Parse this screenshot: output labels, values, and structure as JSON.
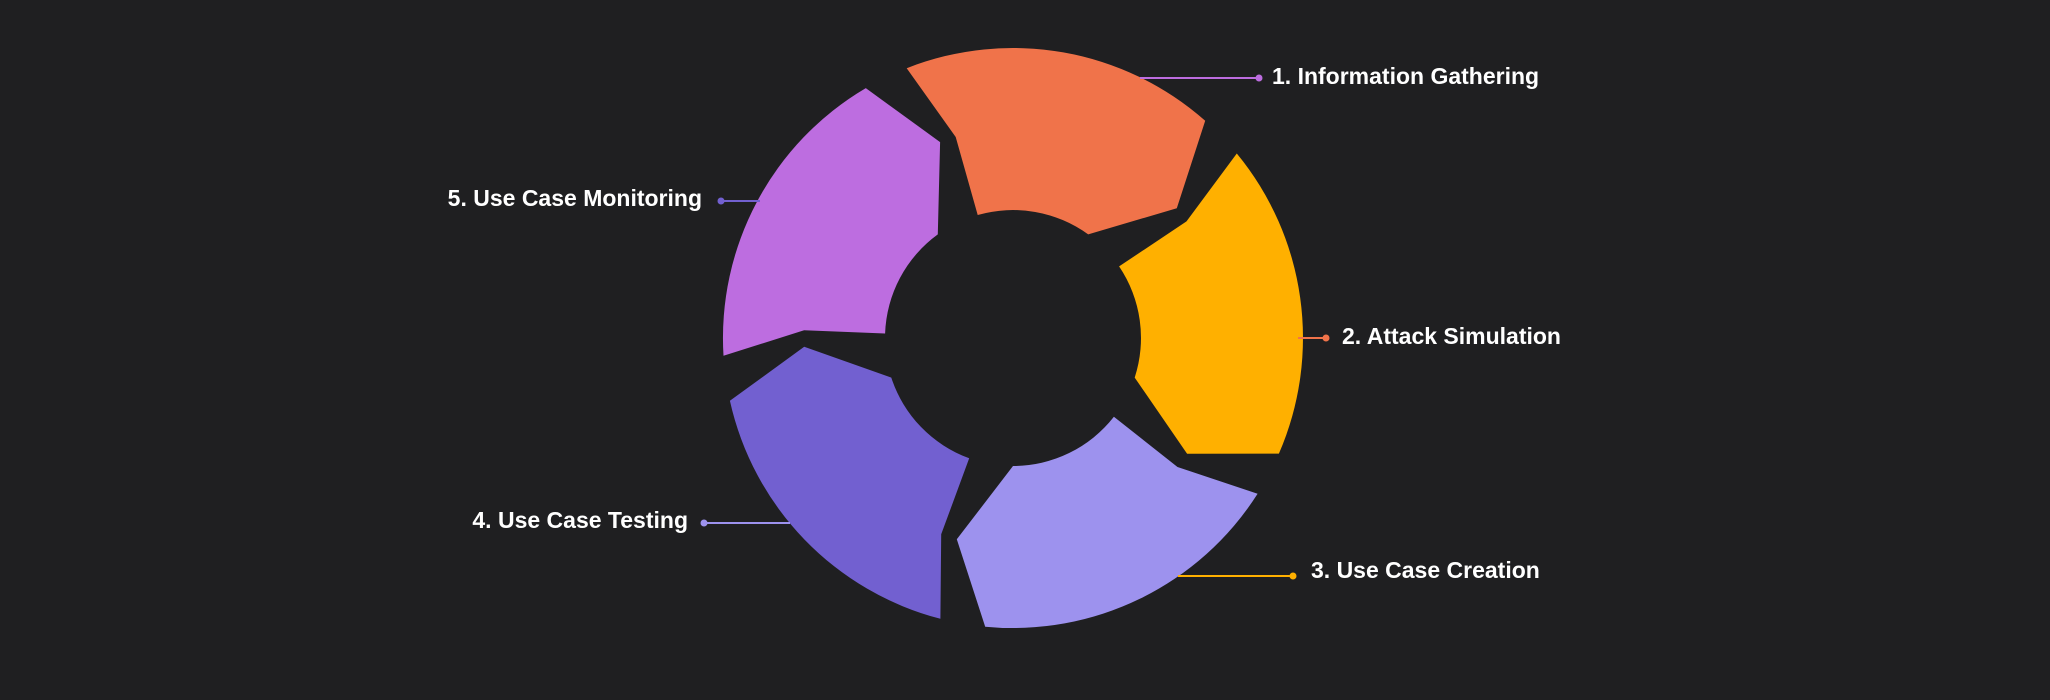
{
  "diagram": {
    "type": "cycle",
    "background": "#1f1f21",
    "steps": [
      {
        "label": "1. Information Gathering",
        "color": "#bd6de0"
      },
      {
        "label": "2. Attack Simulation",
        "color": "#f0734a"
      },
      {
        "label": "3. Use Case Creation",
        "color": "#ffb000"
      },
      {
        "label": "4. Use Case Testing",
        "color": "#9d92ee"
      },
      {
        "label": "5. Use Case Monitoring",
        "color": "#7260d0"
      }
    ]
  }
}
